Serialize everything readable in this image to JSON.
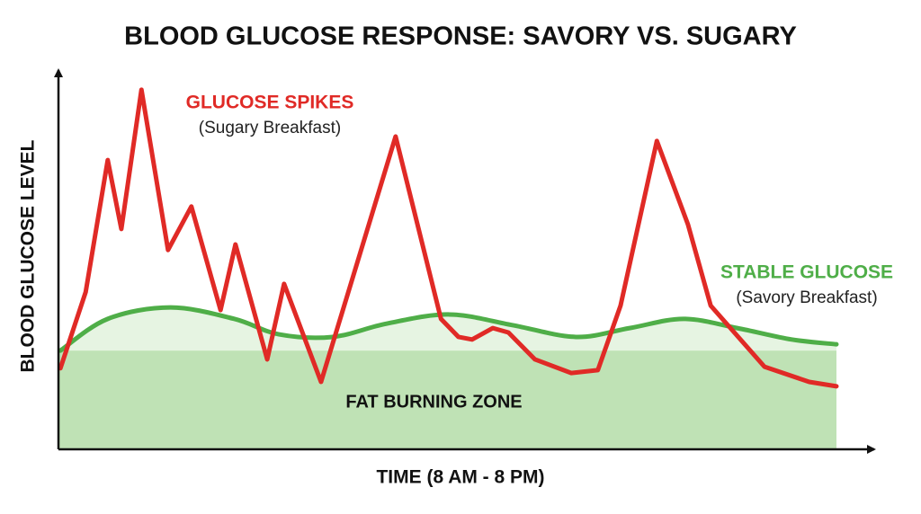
{
  "chart_data": {
    "type": "line",
    "title": "BLOOD GLUCOSE RESPONSE: SAVORY VS. SUGARY",
    "x_label": "TIME (8 AM - 8 PM)",
    "y_label": "BLOOD GLUCOSE LEVEL",
    "xlim": [
      8,
      20
    ],
    "ylim": [
      0,
      100
    ],
    "zone_label": "FAT BURNING ZONE",
    "zone_top": 26.8,
    "zone_color": "#a9d89c",
    "series": [
      {
        "name": "GLUCOSE SPIKES",
        "note": "(Sugary Breakfast)",
        "color": "#e02a26",
        "x": [
          8.03,
          8.42,
          8.76,
          8.97,
          9.28,
          9.69,
          10.05,
          10.5,
          10.73,
          11.22,
          11.48,
          12.05,
          13.2,
          13.9,
          14.17,
          14.38,
          14.7,
          14.94,
          15.35,
          15.91,
          16.32,
          16.67,
          17.23,
          17.71,
          18.06,
          18.89,
          19.58,
          20.0
        ],
        "values": [
          22.0,
          42.7,
          78.5,
          59.8,
          97.6,
          54.1,
          65.9,
          37.8,
          55.6,
          24.4,
          44.9,
          18.3,
          84.9,
          35.4,
          30.5,
          29.8,
          32.9,
          31.7,
          24.4,
          20.7,
          21.5,
          39.0,
          83.7,
          61.0,
          39.0,
          22.4,
          18.3,
          17.1
        ]
      },
      {
        "name": "STABLE GLUCOSE",
        "note": "(Savory Breakfast)",
        "color": "#4fae48",
        "x": [
          8.03,
          8.76,
          9.73,
          10.71,
          11.4,
          12.23,
          13.06,
          14.03,
          15.0,
          15.98,
          16.81,
          17.64,
          18.47,
          19.31,
          20.0
        ],
        "values": [
          26.8,
          35.4,
          38.5,
          35.4,
          31.2,
          30.5,
          34.1,
          36.6,
          33.7,
          30.5,
          32.9,
          35.4,
          32.9,
          29.8,
          28.5
        ]
      }
    ]
  }
}
